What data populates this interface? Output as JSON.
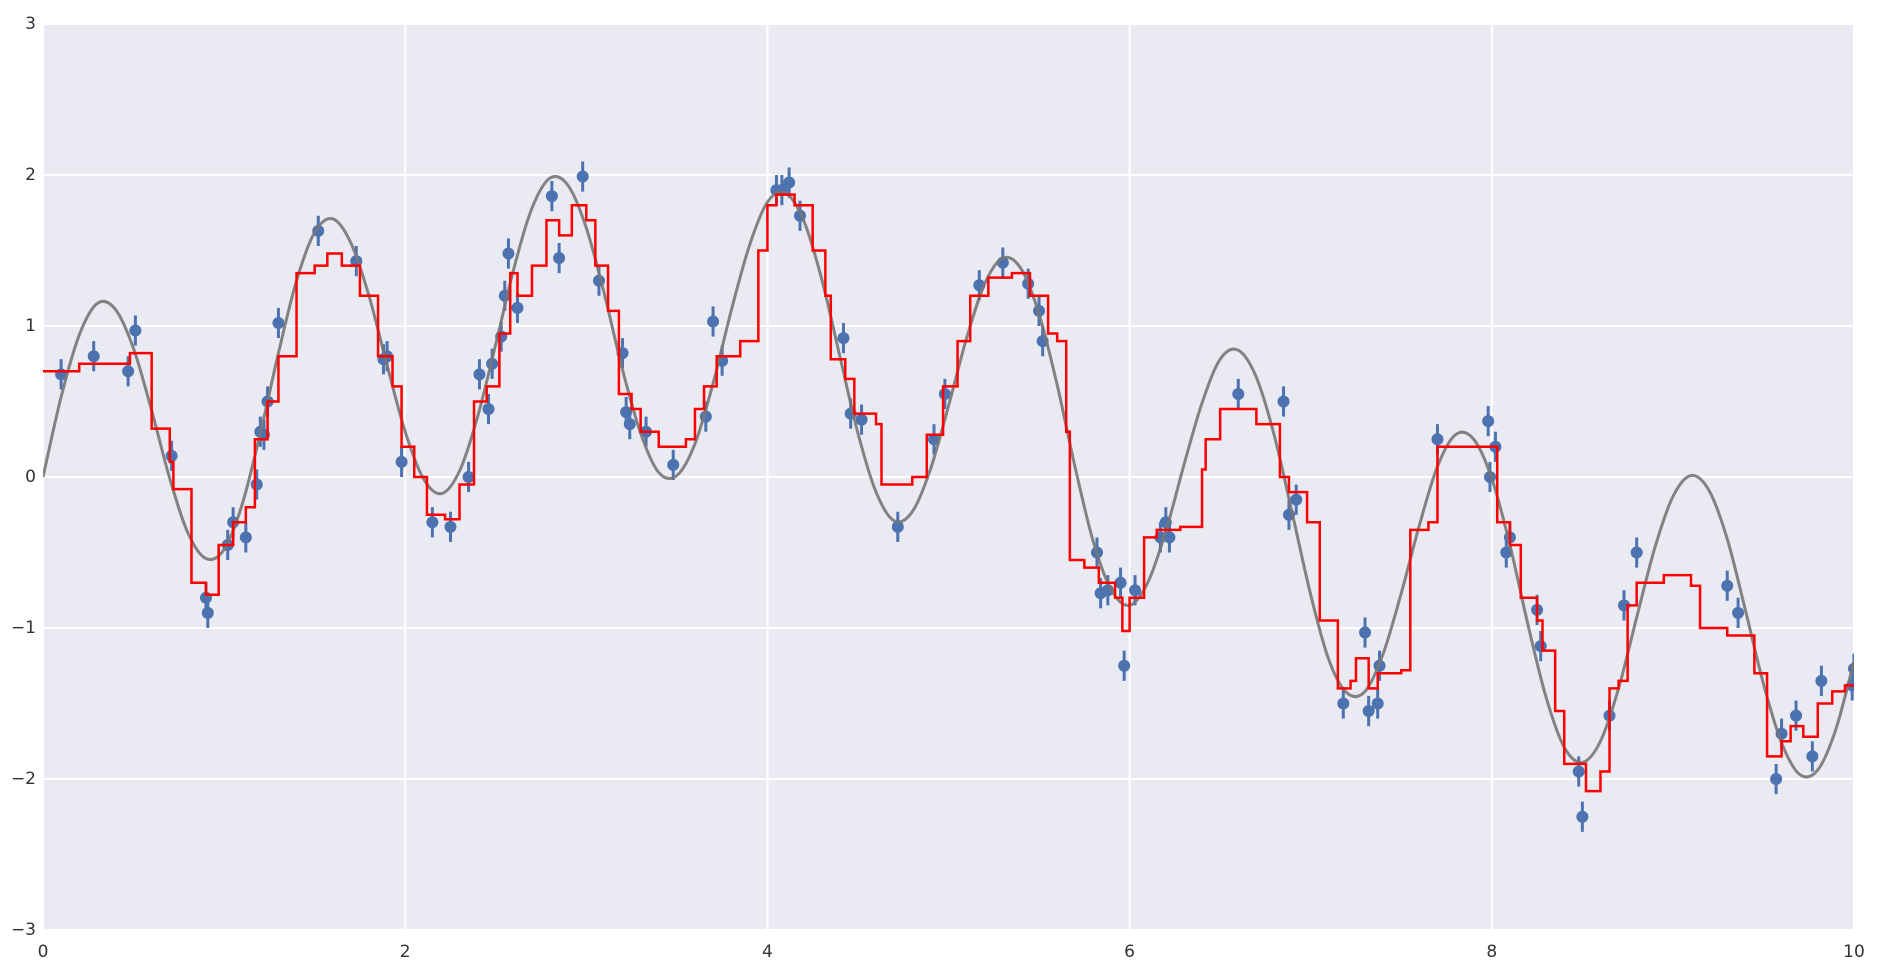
{
  "chart_data": {
    "type": "scatter",
    "xlim": [
      0,
      10
    ],
    "ylim": [
      -3,
      3
    ],
    "xticks": [
      0,
      2,
      4,
      6,
      8,
      10
    ],
    "yticks": [
      {
        "value": -3,
        "label": "−3"
      },
      {
        "value": -2,
        "label": "−2"
      },
      {
        "value": -1,
        "label": "−1"
      },
      0,
      1,
      2,
      3
    ],
    "grid": true,
    "points": {
      "color": "#4c72b0",
      "error": 0.1,
      "x": [
        0.1,
        0.28,
        0.47,
        0.51,
        0.71,
        0.9,
        0.91,
        1.02,
        1.05,
        1.12,
        1.18,
        1.2,
        1.22,
        1.24,
        1.3,
        1.52,
        1.73,
        1.88,
        1.9,
        1.98,
        2.15,
        2.25,
        2.35,
        2.41,
        2.46,
        2.48,
        2.53,
        2.55,
        2.57,
        2.62,
        2.81,
        2.85,
        2.98,
        3.07,
        3.2,
        3.22,
        3.24,
        3.33,
        3.48,
        3.66,
        3.7,
        3.75,
        4.05,
        4.08,
        4.12,
        4.18,
        4.42,
        4.46,
        4.52,
        4.72,
        4.92,
        4.98,
        5.17,
        5.3,
        5.44,
        5.5,
        5.52,
        5.82,
        5.84,
        5.88,
        5.95,
        5.97,
        6.03,
        6.17,
        6.2,
        6.22,
        6.6,
        6.85,
        6.88,
        6.92,
        7.18,
        7.3,
        7.32,
        7.37,
        7.38,
        7.7,
        7.98,
        7.99,
        8.02,
        8.08,
        8.1,
        8.25,
        8.27,
        8.48,
        8.5,
        8.65,
        8.73,
        8.8,
        9.3,
        9.36,
        9.57,
        9.6,
        9.68,
        9.77,
        9.82,
        9.99,
        10.0
      ],
      "values": [
        0.68,
        0.8,
        0.7,
        0.97,
        0.14,
        -0.8,
        -0.9,
        -0.45,
        -0.3,
        -0.4,
        -0.05,
        0.3,
        0.28,
        0.5,
        1.02,
        1.63,
        1.43,
        0.78,
        0.8,
        0.1,
        -0.3,
        -0.33,
        0,
        0.68,
        0.45,
        0.75,
        0.93,
        1.2,
        1.48,
        1.12,
        1.86,
        1.45,
        1.99,
        1.3,
        0.82,
        0.43,
        0.35,
        0.3,
        0.08,
        0.4,
        1.03,
        0.77,
        1.9,
        1.9,
        1.95,
        1.73,
        0.92,
        0.42,
        0.38,
        -0.33,
        0.25,
        0.55,
        1.27,
        1.42,
        1.28,
        1.1,
        0.9,
        -0.5,
        -0.77,
        -0.75,
        -0.7,
        -1.25,
        -0.75,
        -0.4,
        -0.3,
        -0.4,
        0.55,
        0.5,
        -0.25,
        -0.15,
        -1.5,
        -1.03,
        -1.55,
        -1.5,
        -1.25,
        0.25,
        0.37,
        0,
        0.2,
        -0.5,
        -0.4,
        -0.88,
        -1.12,
        -1.95,
        -2.25,
        -1.58,
        -0.85,
        -0.5,
        -0.72,
        -0.9,
        -2,
        -1.7,
        -1.58,
        -1.85,
        -1.35,
        -1.38,
        -1.27
      ]
    },
    "curve": {
      "color": "#777777",
      "x": [
        0,
        0.1,
        0.2,
        0.3,
        0.4,
        0.5,
        0.6,
        0.7,
        0.8,
        0.9,
        1,
        1.1,
        1.2,
        1.3,
        1.4,
        1.5,
        1.6,
        1.7,
        1.8,
        1.9,
        2,
        2.1,
        2.2,
        2.3,
        2.4,
        2.5,
        2.6,
        2.7,
        2.8,
        2.9,
        3,
        3.1,
        3.2,
        3.3,
        3.4,
        3.5,
        3.6,
        3.7,
        3.8,
        3.9,
        4,
        4.1,
        4.2,
        4.3,
        4.4,
        4.5,
        4.6,
        4.7,
        4.8,
        4.9,
        5,
        5.1,
        5.2,
        5.3,
        5.4,
        5.5,
        5.6,
        5.7,
        5.8,
        5.9,
        6,
        6.1,
        6.2,
        6.3,
        6.4,
        6.5,
        6.6,
        6.7,
        6.8,
        6.9,
        7,
        7.1,
        7.2,
        7.3,
        7.4,
        7.5,
        7.6,
        7.7,
        7.8,
        7.9,
        8,
        8.1,
        8.2,
        8.3,
        8.4,
        8.5,
        8.6,
        8.7,
        8.8,
        8.9,
        9,
        9.1,
        9.2,
        9.3,
        9.4,
        9.5,
        9.6,
        9.7,
        9.8,
        9.9,
        10
      ],
      "values": [
        0,
        0.53,
        0.94,
        1.15,
        1.11,
        0.85,
        0.44,
        -0.01,
        -0.37,
        -0.54,
        -0.48,
        -0.18,
        0.29,
        0.82,
        1.3,
        1.62,
        1.71,
        1.55,
        1.2,
        0.74,
        0.3,
        -0.01,
        -0.11,
        0.04,
        0.4,
        0.88,
        1.38,
        1.78,
        1.98,
        1.93,
        1.65,
        1.21,
        0.71,
        0.29,
        0.03,
        0.01,
        0.22,
        0.62,
        1.1,
        1.53,
        1.82,
        1.88,
        1.7,
        1.31,
        0.8,
        0.29,
        -0.1,
        -0.29,
        -0.23,
        0.05,
        0.47,
        0.92,
        1.28,
        1.45,
        1.38,
        1.08,
        0.61,
        0.06,
        -0.43,
        -0.75,
        -0.85,
        -0.7,
        -0.36,
        0.08,
        0.49,
        0.78,
        0.84,
        0.66,
        0.27,
        -0.25,
        -0.78,
        -1.21,
        -1.43,
        -1.42,
        -1.17,
        -0.77,
        -0.32,
        0.07,
        0.28,
        0.25,
        -0.01,
        -0.45,
        -0.98,
        -1.46,
        -1.79,
        -1.89,
        -1.75,
        -1.4,
        -0.93,
        -0.47,
        -0.13,
        0.01,
        -0.09,
        -0.41,
        -0.88,
        -1.37,
        -1.76,
        -1.97,
        -1.94,
        -1.67,
        -1.22
      ]
    },
    "fit": {
      "color": "#ff0000",
      "step": "post",
      "x": [
        0,
        0.2,
        0.4,
        0.48,
        0.6,
        0.7,
        0.72,
        0.82,
        0.9,
        0.97,
        1.05,
        1.12,
        1.17,
        1.24,
        1.3,
        1.4,
        1.5,
        1.57,
        1.65,
        1.75,
        1.85,
        1.93,
        1.98,
        2.05,
        2.12,
        2.22,
        2.3,
        2.38,
        2.45,
        2.52,
        2.58,
        2.62,
        2.7,
        2.78,
        2.85,
        2.92,
        3.0,
        3.05,
        3.12,
        3.18,
        3.25,
        3.3,
        3.4,
        3.55,
        3.6,
        3.65,
        3.72,
        3.85,
        3.95,
        4.0,
        4.05,
        4.15,
        4.25,
        4.32,
        4.35,
        4.43,
        4.48,
        4.6,
        4.63,
        4.8,
        4.88,
        4.97,
        5.05,
        5.12,
        5.22,
        5.35,
        5.45,
        5.55,
        5.6,
        5.65,
        5.67,
        5.75,
        5.83,
        5.92,
        5.96,
        6.0,
        6.08,
        6.15,
        6.28,
        6.4,
        6.42,
        6.5,
        6.7,
        6.83,
        6.88,
        6.98,
        7.05,
        7.15,
        7.22,
        7.25,
        7.32,
        7.37,
        7.5,
        7.55,
        7.65,
        7.7,
        7.95,
        8.03,
        8.1,
        8.16,
        8.25,
        8.28,
        8.35,
        8.4,
        8.52,
        8.6,
        8.65,
        8.7,
        8.75,
        8.8,
        8.95,
        9.1,
        9.15,
        9.3,
        9.45,
        9.52,
        9.6,
        9.65,
        9.72,
        9.8,
        9.88,
        9.95,
        10
      ],
      "values": [
        0.7,
        0.75,
        0.75,
        0.82,
        0.32,
        0.1,
        -0.08,
        -0.7,
        -0.78,
        -0.45,
        -0.3,
        -0.2,
        0.25,
        0.5,
        0.8,
        1.35,
        1.4,
        1.48,
        1.4,
        1.2,
        0.8,
        0.6,
        0.2,
        0,
        -0.25,
        -0.28,
        -0.05,
        0.5,
        0.6,
        0.95,
        1.35,
        1.2,
        1.4,
        1.7,
        1.6,
        1.8,
        1.7,
        1.4,
        1.1,
        0.55,
        0.45,
        0.3,
        0.2,
        0.25,
        0.45,
        0.6,
        0.8,
        0.9,
        1.5,
        1.8,
        1.87,
        1.8,
        1.5,
        1.2,
        0.78,
        0.65,
        0.42,
        0.35,
        -0.05,
        0,
        0.28,
        0.6,
        0.9,
        1.2,
        1.32,
        1.35,
        1.2,
        0.95,
        0.9,
        0.3,
        -0.55,
        -0.6,
        -0.7,
        -0.8,
        -1.02,
        -0.8,
        -0.4,
        -0.35,
        -0.33,
        0.05,
        0.25,
        0.45,
        0.35,
        0,
        -0.1,
        -0.3,
        -0.95,
        -1.4,
        -1.35,
        -1.2,
        -1.4,
        -1.3,
        -1.28,
        -0.35,
        -0.3,
        0.2,
        0.2,
        -0.3,
        -0.45,
        -0.8,
        -0.95,
        -1.15,
        -1.55,
        -1.9,
        -2.08,
        -1.95,
        -1.4,
        -1.35,
        -0.85,
        -0.7,
        -0.65,
        -0.72,
        -1.0,
        -1.05,
        -1.3,
        -1.85,
        -1.75,
        -1.65,
        -1.72,
        -1.5,
        -1.42,
        -1.38,
        -1.38
      ]
    }
  }
}
